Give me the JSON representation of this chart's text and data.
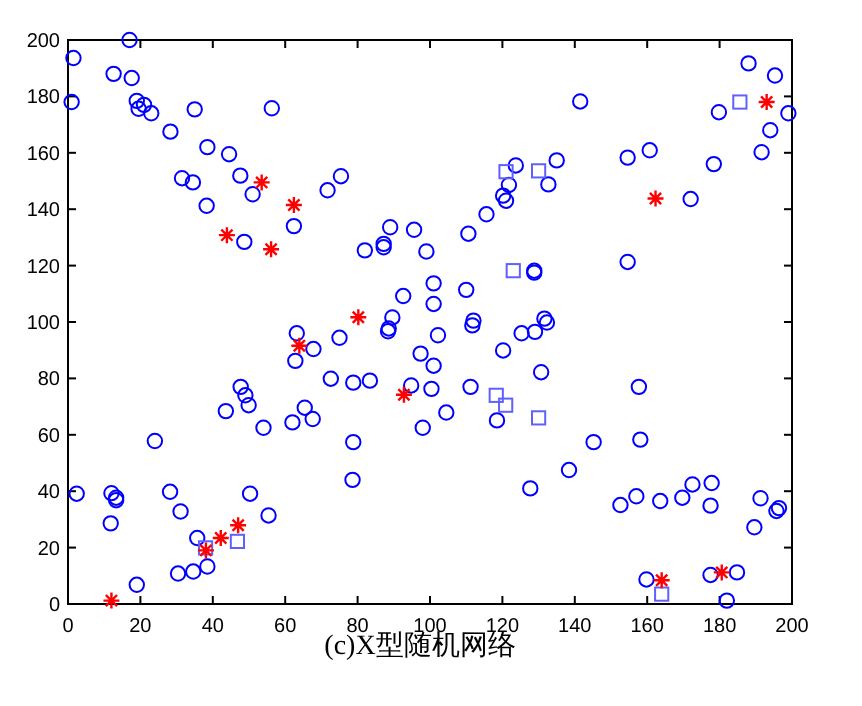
{
  "chart_data": {
    "type": "scatter",
    "title": "(c)X型随机网络",
    "xlim": [
      0,
      200
    ],
    "ylim": [
      0,
      200
    ],
    "xticks": [
      0,
      20,
      40,
      60,
      80,
      100,
      120,
      140,
      160,
      180,
      200
    ],
    "yticks": [
      0,
      20,
      40,
      60,
      80,
      100,
      120,
      140,
      160,
      180,
      200
    ],
    "grid": false,
    "series": [
      {
        "color": "#0000ff",
        "marker": "circle",
        "x": [
          1.5,
          17,
          1,
          12.6,
          17.6,
          19,
          21,
          19.5,
          23,
          28.3,
          35,
          56.3,
          38.5,
          44.5,
          31.5,
          34.5,
          47.6,
          51,
          38.3,
          48.7,
          62.4,
          71.7,
          75.4,
          82,
          87.2,
          87.2,
          89,
          95.6,
          99,
          101,
          92.6,
          101,
          89.6,
          188,
          195.3,
          141.5,
          179.8,
          199,
          194,
          191.6,
          178.4,
          160.7,
          154.6,
          135,
          123.7,
          132.7,
          121.8,
          120.2,
          121,
          115.6,
          110.6,
          172,
          154.6,
          128.8,
          128.8,
          110,
          112,
          2.4,
          12,
          13.3,
          13.3,
          11.8,
          19,
          24,
          28.2,
          31.1,
          35.7,
          38.5,
          30.4,
          34.6,
          50.3,
          55.4,
          43.6,
          47.7,
          49,
          49.9,
          54,
          63.2,
          62.8,
          67.8,
          62,
          65.4,
          67.6,
          75,
          72.6,
          78.8,
          83.4,
          78.8,
          78.6,
          88.6,
          88.4,
          97.4,
          101,
          94.8,
          100.4,
          98,
          102.2,
          111.7,
          120.2,
          125.3,
          129,
          131.6,
          132.3,
          130.7,
          111.2,
          118.5,
          104.5,
          157.7,
          145.2,
          158.1,
          138.4,
          127.7,
          152.6,
          157,
          163.6,
          169.7,
          172.5,
          177.8,
          177.5,
          191.3,
          195.7,
          196.4,
          189.6,
          159.8,
          177.5,
          184.8,
          182
        ],
        "values": [
          193.6,
          200,
          178,
          188,
          186.5,
          178.4,
          177,
          175.6,
          174,
          167.5,
          175.4,
          175.8,
          162,
          159.5,
          151,
          149.5,
          151.9,
          145.3,
          141.2,
          128.4,
          134,
          146.7,
          151.7,
          125.4,
          127.7,
          126.5,
          133.6,
          132.7,
          125,
          113.7,
          109.2,
          106.4,
          101.6,
          191.7,
          187.4,
          178.2,
          174.4,
          174,
          168,
          160.2,
          156,
          160.9,
          158.3,
          157.3,
          155.5,
          148.8,
          148.6,
          144.8,
          143,
          138.2,
          131.3,
          143.6,
          121.3,
          117.5,
          118.2,
          111.4,
          100.5,
          39.1,
          39.3,
          37.7,
          36.8,
          28.6,
          6.8,
          57.8,
          39.8,
          32.8,
          23.4,
          13.3,
          10.8,
          11.5,
          39.1,
          31.4,
          68.4,
          77,
          74,
          70.5,
          62.5,
          96,
          86.2,
          90.4,
          64.4,
          69.6,
          65.6,
          94.4,
          79.9,
          78.5,
          79.2,
          57.4,
          44,
          97.7,
          96.7,
          88.8,
          84.5,
          77.5,
          76.3,
          62.5,
          95.3,
          98.8,
          89.9,
          96,
          96.5,
          101.2,
          99.8,
          82.2,
          77,
          65.1,
          67.9,
          77,
          57.4,
          58.3,
          47.5,
          41,
          35.1,
          38.2,
          36.5,
          37.7,
          42.4,
          42.9,
          34.9,
          37.5,
          33,
          34,
          27.2,
          8.7,
          10.3,
          11.2,
          1.2
        ]
      },
      {
        "color": "#6060ff",
        "marker": "square",
        "x": [
          185.6,
          121,
          130,
          123,
          118.3,
          120.9,
          130,
          38,
          46.8,
          164
        ],
        "values": [
          178,
          153.3,
          153.6,
          118.2,
          74,
          70.5,
          66,
          19.9,
          22.2,
          3.5
        ]
      },
      {
        "color": "#ff0000",
        "marker": "cross",
        "x": [
          53.5,
          43.9,
          62.4,
          56.1,
          80.2,
          193,
          162.3,
          38.1,
          42.2,
          47,
          63.9,
          92.8,
          164,
          180.6,
          12
        ],
        "values": [
          149.5,
          130.8,
          141.5,
          125.8,
          101.7,
          178,
          143.8,
          19,
          23.4,
          27.9,
          91.6,
          74.2,
          8.4,
          11.2,
          1.2
        ]
      }
    ]
  }
}
